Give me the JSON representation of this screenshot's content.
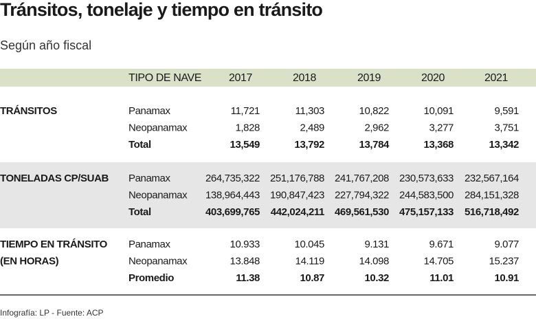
{
  "title": "Tránsitos, tonelaje y tiempo en tránsito",
  "subtitle": "Según año fiscal",
  "header": [
    "TIPO DE NAVE",
    "2017",
    "2018",
    "2019",
    "2020",
    "2021"
  ],
  "sections": [
    {
      "label": [
        "TRÁNSITOS"
      ],
      "rows": [
        [
          "Panamax",
          "11,721",
          "11,303",
          "10,822",
          "10,091",
          "9,591"
        ],
        [
          "Neopanamax",
          "1,828",
          "2,489",
          "2,962",
          "3,277",
          "3,751"
        ],
        [
          "Total",
          "13,549",
          "13,792",
          "13,784",
          "13,368",
          "13,342"
        ]
      ]
    },
    {
      "label": [
        "TONELADAS CP/SUAB"
      ],
      "rows": [
        [
          "Panamax",
          "264,735,322",
          "251,176,788",
          "241,767,208",
          "230,573,633",
          "232,567,164"
        ],
        [
          "Neopanamax",
          "138,964,443",
          "190,847,423",
          "227,794,322",
          "244,583,500",
          "284,151,328"
        ],
        [
          "Total",
          "403,699,765",
          "442,024,211",
          "469,561,530",
          "475,157,133",
          "516,718,492"
        ]
      ]
    },
    {
      "label": [
        "TIEMPO EN TRÁNSITO",
        "(EN HORAS)"
      ],
      "rows": [
        [
          "Panamax",
          "10.933",
          "10.045",
          "9.131",
          "9.671",
          "9.077"
        ],
        [
          "Neopanamax",
          "13.848",
          "14.119",
          "14.098",
          "14.705",
          "15.237"
        ],
        [
          "Promedio",
          "11.38",
          "10.87",
          "10.32",
          "11.01",
          "10.91"
        ]
      ]
    }
  ],
  "footer": "Infografía: LP - Fuente: ACP"
}
